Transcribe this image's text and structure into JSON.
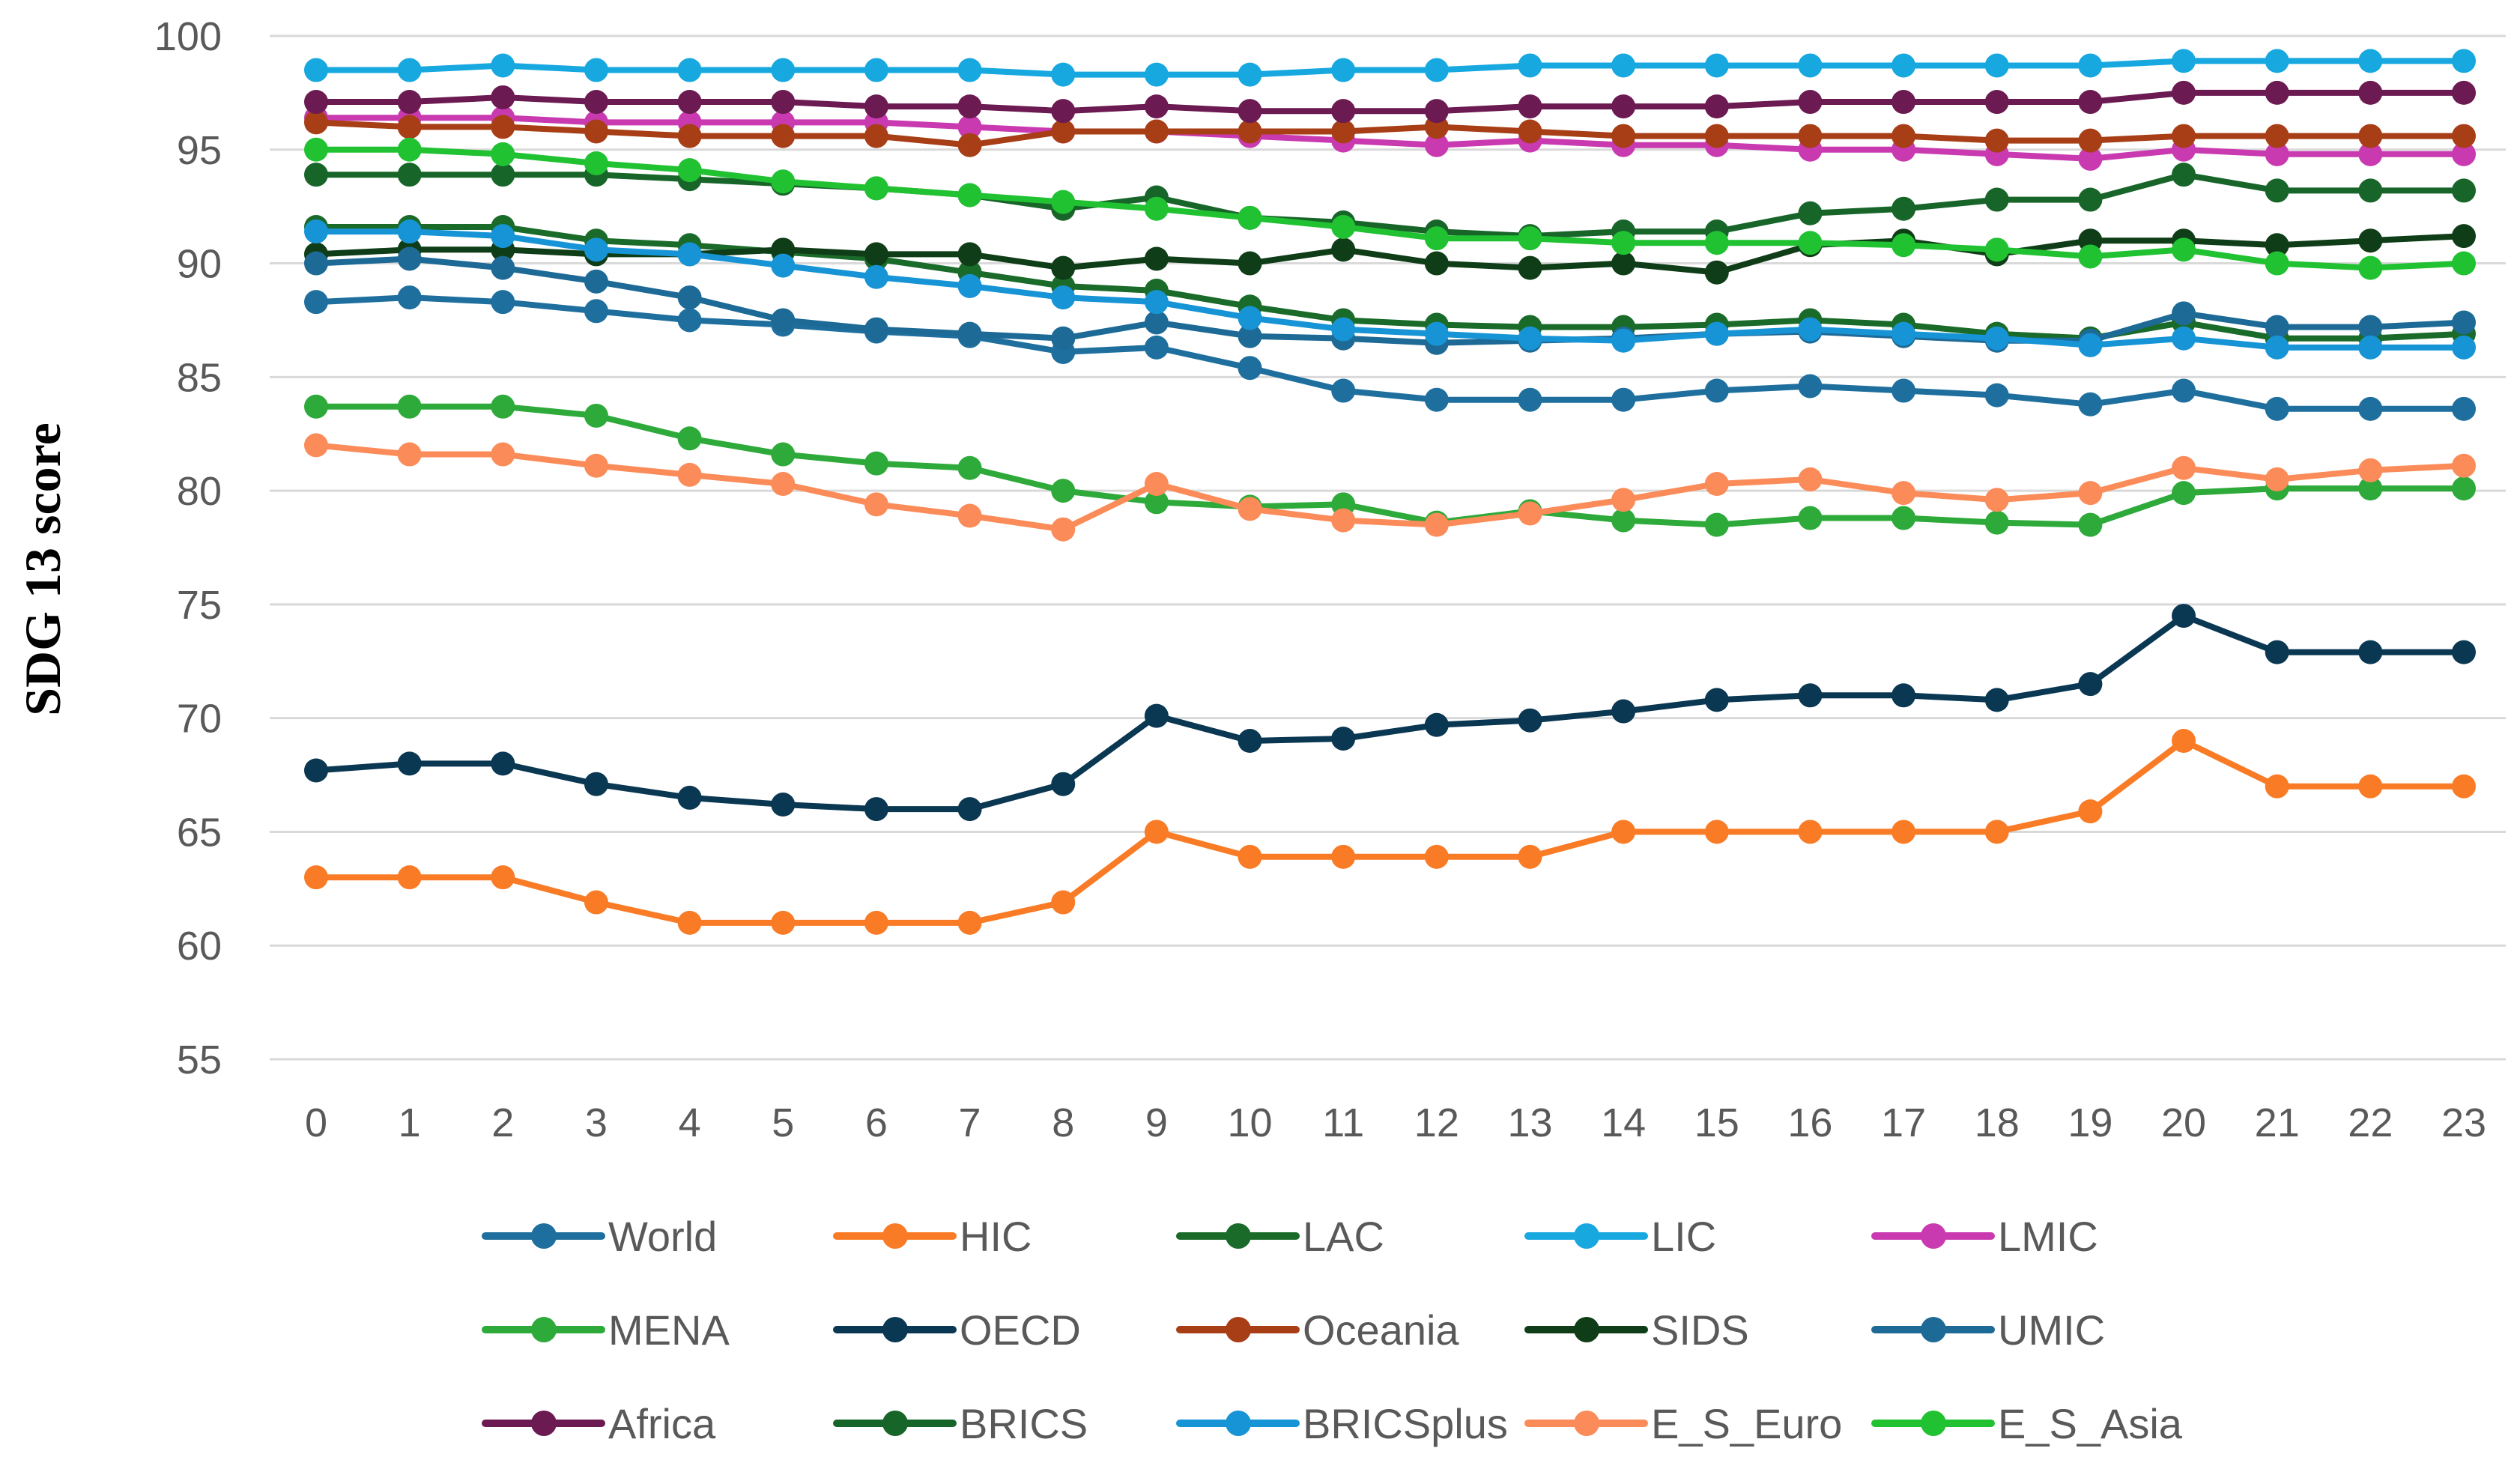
{
  "chart_data": {
    "type": "line",
    "title": "",
    "xlabel": "",
    "ylabel": "SDG 13 score",
    "ylim": [
      55,
      100
    ],
    "yticks": [
      "55",
      "60",
      "65",
      "70",
      "75",
      "80",
      "85",
      "90",
      "95",
      "100"
    ],
    "categories": [
      "0",
      "1",
      "2",
      "3",
      "4",
      "5",
      "6",
      "7",
      "8",
      "9",
      "10",
      "11",
      "12",
      "13",
      "14",
      "15",
      "16",
      "17",
      "18",
      "19",
      "20",
      "21",
      "22",
      "23"
    ],
    "grid": true,
    "legend_position": "bottom",
    "series": [
      {
        "name": "World",
        "color": "#1f6f9e",
        "values": [
          88.3,
          88.5,
          88.3,
          87.9,
          87.5,
          87.3,
          87.0,
          86.8,
          86.1,
          86.3,
          85.4,
          84.4,
          84.0,
          84.0,
          84.0,
          84.4,
          84.6,
          84.4,
          84.2,
          83.8,
          84.4,
          83.6,
          83.6,
          83.6
        ]
      },
      {
        "name": "HIC",
        "color": "#f97b25",
        "values": [
          63.0,
          63.0,
          63.0,
          61.9,
          61.0,
          61.0,
          61.0,
          61.0,
          61.9,
          65.0,
          63.9,
          63.9,
          63.9,
          63.9,
          65.0,
          65.0,
          65.0,
          65.0,
          65.0,
          65.9,
          69.0,
          67.0,
          67.0,
          67.0
        ]
      },
      {
        "name": "LAC",
        "color": "#1a6b2a",
        "values": [
          91.6,
          91.6,
          91.6,
          91.0,
          90.8,
          90.5,
          90.2,
          89.6,
          89.0,
          88.8,
          88.1,
          87.5,
          87.3,
          87.2,
          87.2,
          87.3,
          87.5,
          87.3,
          86.9,
          86.7,
          87.4,
          86.7,
          86.7,
          86.9
        ]
      },
      {
        "name": "LIC",
        "color": "#17a8e0",
        "values": [
          98.5,
          98.5,
          98.7,
          98.5,
          98.5,
          98.5,
          98.5,
          98.5,
          98.3,
          98.3,
          98.3,
          98.5,
          98.5,
          98.7,
          98.7,
          98.7,
          98.7,
          98.7,
          98.7,
          98.7,
          98.9,
          98.9,
          98.9,
          98.9
        ]
      },
      {
        "name": "LMIC",
        "color": "#c93ab0",
        "values": [
          96.4,
          96.4,
          96.4,
          96.2,
          96.2,
          96.2,
          96.2,
          96.0,
          95.8,
          95.8,
          95.6,
          95.4,
          95.2,
          95.4,
          95.2,
          95.2,
          95.0,
          95.0,
          94.8,
          94.6,
          95.0,
          94.8,
          94.8,
          94.8
        ]
      },
      {
        "name": "MENA",
        "color": "#2eaa3a",
        "values": [
          83.7,
          83.7,
          83.7,
          83.3,
          82.3,
          81.6,
          81.2,
          81.0,
          80.0,
          79.5,
          79.3,
          79.4,
          78.6,
          79.1,
          78.7,
          78.5,
          78.8,
          78.8,
          78.6,
          78.5,
          79.9,
          80.1,
          80.1,
          80.1
        ]
      },
      {
        "name": "OECD",
        "color": "#0a3752",
        "values": [
          67.7,
          68.0,
          68.0,
          67.1,
          66.5,
          66.2,
          66.0,
          66.0,
          67.1,
          70.1,
          69.0,
          69.1,
          69.7,
          69.9,
          70.3,
          70.8,
          71.0,
          71.0,
          70.8,
          71.5,
          74.5,
          72.9,
          72.9,
          72.9
        ]
      },
      {
        "name": "Oceania",
        "color": "#a73e16",
        "values": [
          96.2,
          96.0,
          96.0,
          95.8,
          95.6,
          95.6,
          95.6,
          95.2,
          95.8,
          95.8,
          95.8,
          95.8,
          96.0,
          95.8,
          95.6,
          95.6,
          95.6,
          95.6,
          95.4,
          95.4,
          95.6,
          95.6,
          95.6,
          95.6
        ]
      },
      {
        "name": "SIDS",
        "color": "#0e3d17",
        "values": [
          90.4,
          90.6,
          90.6,
          90.4,
          90.4,
          90.6,
          90.4,
          90.4,
          89.8,
          90.2,
          90.0,
          90.6,
          90.0,
          89.8,
          90.0,
          89.6,
          90.8,
          91.0,
          90.4,
          91.0,
          91.0,
          90.8,
          91.0,
          91.2
        ]
      },
      {
        "name": "UMIC",
        "color": "#1e6a96",
        "values": [
          90.0,
          90.2,
          89.8,
          89.2,
          88.5,
          87.5,
          87.1,
          86.9,
          86.7,
          87.4,
          86.8,
          86.7,
          86.5,
          86.6,
          86.7,
          86.9,
          87.0,
          86.8,
          86.6,
          86.6,
          87.8,
          87.2,
          87.2,
          87.4
        ]
      },
      {
        "name": "Africa",
        "color": "#6b1a52",
        "values": [
          97.1,
          97.1,
          97.3,
          97.1,
          97.1,
          97.1,
          96.9,
          96.9,
          96.7,
          96.9,
          96.7,
          96.7,
          96.7,
          96.9,
          96.9,
          96.9,
          97.1,
          97.1,
          97.1,
          97.1,
          97.5,
          97.5,
          97.5,
          97.5
        ]
      },
      {
        "name": "BRICS",
        "color": "#18652a",
        "values": [
          93.9,
          93.9,
          93.9,
          93.9,
          93.7,
          93.5,
          93.3,
          93.0,
          92.4,
          92.9,
          92.0,
          91.8,
          91.4,
          91.2,
          91.4,
          91.4,
          92.2,
          92.4,
          92.8,
          92.8,
          93.9,
          93.2,
          93.2,
          93.2
        ]
      },
      {
        "name": "BRICSplus",
        "color": "#1794d6",
        "values": [
          91.4,
          91.4,
          91.2,
          90.6,
          90.4,
          89.9,
          89.4,
          89.0,
          88.5,
          88.3,
          87.6,
          87.1,
          86.9,
          86.7,
          86.6,
          86.9,
          87.1,
          86.9,
          86.7,
          86.4,
          86.7,
          86.3,
          86.3,
          86.3
        ]
      },
      {
        "name": "E_S_Euro",
        "color": "#fb8c5a",
        "values": [
          82.0,
          81.6,
          81.6,
          81.1,
          80.7,
          80.3,
          79.4,
          78.9,
          78.3,
          80.3,
          79.2,
          78.7,
          78.5,
          79.0,
          79.6,
          80.3,
          80.5,
          79.9,
          79.6,
          79.9,
          81.0,
          80.5,
          80.9,
          81.1
        ]
      },
      {
        "name": "E_S_Asia",
        "color": "#21c232",
        "values": [
          95.0,
          95.0,
          94.8,
          94.4,
          94.1,
          93.6,
          93.3,
          93.0,
          92.7,
          92.4,
          92.0,
          91.6,
          91.1,
          91.1,
          90.9,
          90.9,
          90.9,
          90.8,
          90.6,
          90.3,
          90.6,
          90.0,
          89.8,
          90.0
        ]
      }
    ]
  }
}
